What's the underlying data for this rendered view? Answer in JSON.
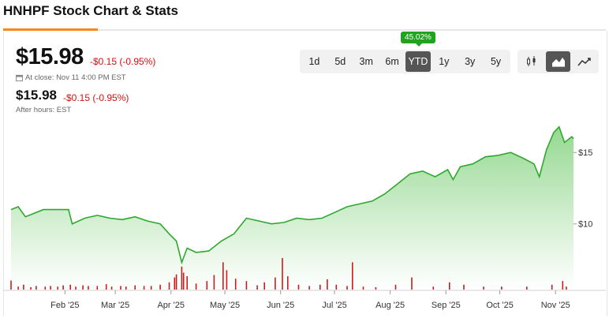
{
  "header": {
    "title": "HNHPF Stock Chart & Stats"
  },
  "quote": {
    "price": "$15.98",
    "change": "-$0.15 (-0.95%)",
    "close_text": "At close: Nov 11 4:00 PM EST",
    "after_price": "$15.98",
    "after_change": "-$0.15 (-0.95%)",
    "after_label": "After hours: EST"
  },
  "range_selector": {
    "badge": "45.02%",
    "options": [
      "1d",
      "5d",
      "3m",
      "6m",
      "YTD",
      "1y",
      "3y",
      "5y"
    ],
    "active": "YTD"
  },
  "chart_type_selector": {
    "options": [
      {
        "icon": "candlestick-chart-icon",
        "active": false
      },
      {
        "icon": "area-chart-icon",
        "active": true
      },
      {
        "icon": "line-chart-icon",
        "active": false
      }
    ]
  },
  "colors": {
    "accent": "#f5891f",
    "line": "#2ea82e",
    "fill_top": "#8fd68a",
    "fill_bottom": "#ffffff",
    "volume": "#c91d1d",
    "badge": "#21a31f",
    "down": "#d60f0f"
  },
  "chart_data": {
    "type": "area",
    "y_ticks": [
      "$15",
      "$10"
    ],
    "y_tick_values": [
      15,
      10
    ],
    "ylim": [
      5.4,
      17.5
    ],
    "x_ticks": [
      "Feb '25",
      "Mar '25",
      "Apr '25",
      "May '25",
      "Jun '25",
      "Jul '25",
      "Aug '25",
      "Sep '25",
      "Oct '25",
      "Nov '25"
    ],
    "x_tick_dates": [
      "2025-02-01",
      "2025-03-01",
      "2025-04-01",
      "2025-05-01",
      "2025-06-01",
      "2025-07-01",
      "2025-08-01",
      "2025-09-01",
      "2025-10-01",
      "2025-11-01"
    ],
    "x_range": [
      "2025-01-02",
      "2025-11-11"
    ],
    "series": [
      {
        "values": [
          [
            "2025-01-02",
            11.0
          ],
          [
            "2025-01-06",
            11.2
          ],
          [
            "2025-01-10",
            10.5
          ],
          [
            "2025-01-14",
            10.7
          ],
          [
            "2025-01-20",
            11.0
          ],
          [
            "2025-01-27",
            11.0
          ],
          [
            "2025-02-03",
            11.0
          ],
          [
            "2025-02-05",
            10.0
          ],
          [
            "2025-02-12",
            10.4
          ],
          [
            "2025-02-19",
            10.6
          ],
          [
            "2025-02-26",
            10.4
          ],
          [
            "2025-03-05",
            10.3
          ],
          [
            "2025-03-12",
            10.5
          ],
          [
            "2025-03-19",
            10.2
          ],
          [
            "2025-03-26",
            10.0
          ],
          [
            "2025-03-31",
            9.3
          ],
          [
            "2025-04-04",
            8.8
          ],
          [
            "2025-04-07",
            7.3
          ],
          [
            "2025-04-10",
            8.3
          ],
          [
            "2025-04-15",
            8.0
          ],
          [
            "2025-04-22",
            8.1
          ],
          [
            "2025-04-29",
            8.8
          ],
          [
            "2025-05-06",
            9.3
          ],
          [
            "2025-05-13",
            10.4
          ],
          [
            "2025-05-20",
            10.2
          ],
          [
            "2025-05-27",
            10.0
          ],
          [
            "2025-06-03",
            10.1
          ],
          [
            "2025-06-10",
            10.4
          ],
          [
            "2025-06-17",
            10.3
          ],
          [
            "2025-06-24",
            10.4
          ],
          [
            "2025-07-01",
            10.8
          ],
          [
            "2025-07-08",
            11.2
          ],
          [
            "2025-07-15",
            11.4
          ],
          [
            "2025-07-22",
            11.6
          ],
          [
            "2025-07-29",
            12.1
          ],
          [
            "2025-08-05",
            12.8
          ],
          [
            "2025-08-12",
            13.5
          ],
          [
            "2025-08-19",
            13.7
          ],
          [
            "2025-08-26",
            13.3
          ],
          [
            "2025-09-02",
            13.8
          ],
          [
            "2025-09-05",
            13.1
          ],
          [
            "2025-09-09",
            14.0
          ],
          [
            "2025-09-16",
            14.2
          ],
          [
            "2025-09-23",
            14.7
          ],
          [
            "2025-09-30",
            14.8
          ],
          [
            "2025-10-07",
            15.0
          ],
          [
            "2025-10-14",
            14.6
          ],
          [
            "2025-10-20",
            14.2
          ],
          [
            "2025-10-23",
            13.3
          ],
          [
            "2025-10-27",
            15.2
          ],
          [
            "2025-10-31",
            16.4
          ],
          [
            "2025-11-03",
            16.8
          ],
          [
            "2025-11-06",
            15.7
          ],
          [
            "2025-11-10",
            16.1
          ],
          [
            "2025-11-11",
            15.98
          ]
        ]
      }
    ],
    "volume_unit": "relative",
    "volume": [
      [
        "2025-01-02",
        0.15
      ],
      [
        "2025-01-06",
        0.05
      ],
      [
        "2025-01-09",
        0.08
      ],
      [
        "2025-01-13",
        0.04
      ],
      [
        "2025-01-16",
        0.06
      ],
      [
        "2025-01-21",
        0.05
      ],
      [
        "2025-01-24",
        0.06
      ],
      [
        "2025-01-28",
        0.05
      ],
      [
        "2025-01-31",
        0.07
      ],
      [
        "2025-02-04",
        0.08
      ],
      [
        "2025-02-07",
        0.05
      ],
      [
        "2025-02-11",
        0.07
      ],
      [
        "2025-02-14",
        0.06
      ],
      [
        "2025-02-19",
        0.06
      ],
      [
        "2025-02-24",
        0.09
      ],
      [
        "2025-02-27",
        0.05
      ],
      [
        "2025-03-04",
        0.06
      ],
      [
        "2025-03-07",
        0.05
      ],
      [
        "2025-03-12",
        0.07
      ],
      [
        "2025-03-17",
        0.06
      ],
      [
        "2025-03-21",
        0.06
      ],
      [
        "2025-03-26",
        0.08
      ],
      [
        "2025-03-31",
        0.12
      ],
      [
        "2025-04-03",
        0.2
      ],
      [
        "2025-04-04",
        0.25
      ],
      [
        "2025-04-07",
        0.38
      ],
      [
        "2025-04-08",
        0.28
      ],
      [
        "2025-04-10",
        0.22
      ],
      [
        "2025-04-15",
        0.1
      ],
      [
        "2025-04-21",
        0.14
      ],
      [
        "2025-04-25",
        0.24
      ],
      [
        "2025-04-30",
        0.45
      ],
      [
        "2025-05-02",
        0.32
      ],
      [
        "2025-05-07",
        0.18
      ],
      [
        "2025-05-13",
        0.14
      ],
      [
        "2025-05-19",
        0.07
      ],
      [
        "2025-05-23",
        0.12
      ],
      [
        "2025-05-29",
        0.2
      ],
      [
        "2025-06-02",
        0.52
      ],
      [
        "2025-06-05",
        0.22
      ],
      [
        "2025-06-11",
        0.08
      ],
      [
        "2025-06-17",
        0.06
      ],
      [
        "2025-06-23",
        0.08
      ],
      [
        "2025-06-27",
        0.17
      ],
      [
        "2025-07-02",
        0.08
      ],
      [
        "2025-07-08",
        0.06
      ],
      [
        "2025-07-11",
        0.45
      ],
      [
        "2025-07-17",
        0.05
      ],
      [
        "2025-07-24",
        0.04
      ],
      [
        "2025-08-04",
        0.08
      ],
      [
        "2025-08-13",
        0.2
      ],
      [
        "2025-08-25",
        0.05
      ],
      [
        "2025-09-03",
        0.12
      ],
      [
        "2025-09-11",
        0.08
      ],
      [
        "2025-09-22",
        0.05
      ],
      [
        "2025-10-02",
        0.05
      ],
      [
        "2025-10-16",
        0.05
      ],
      [
        "2025-10-30",
        0.08
      ],
      [
        "2025-11-05",
        0.14
      ],
      [
        "2025-11-07",
        0.05
      ]
    ]
  }
}
